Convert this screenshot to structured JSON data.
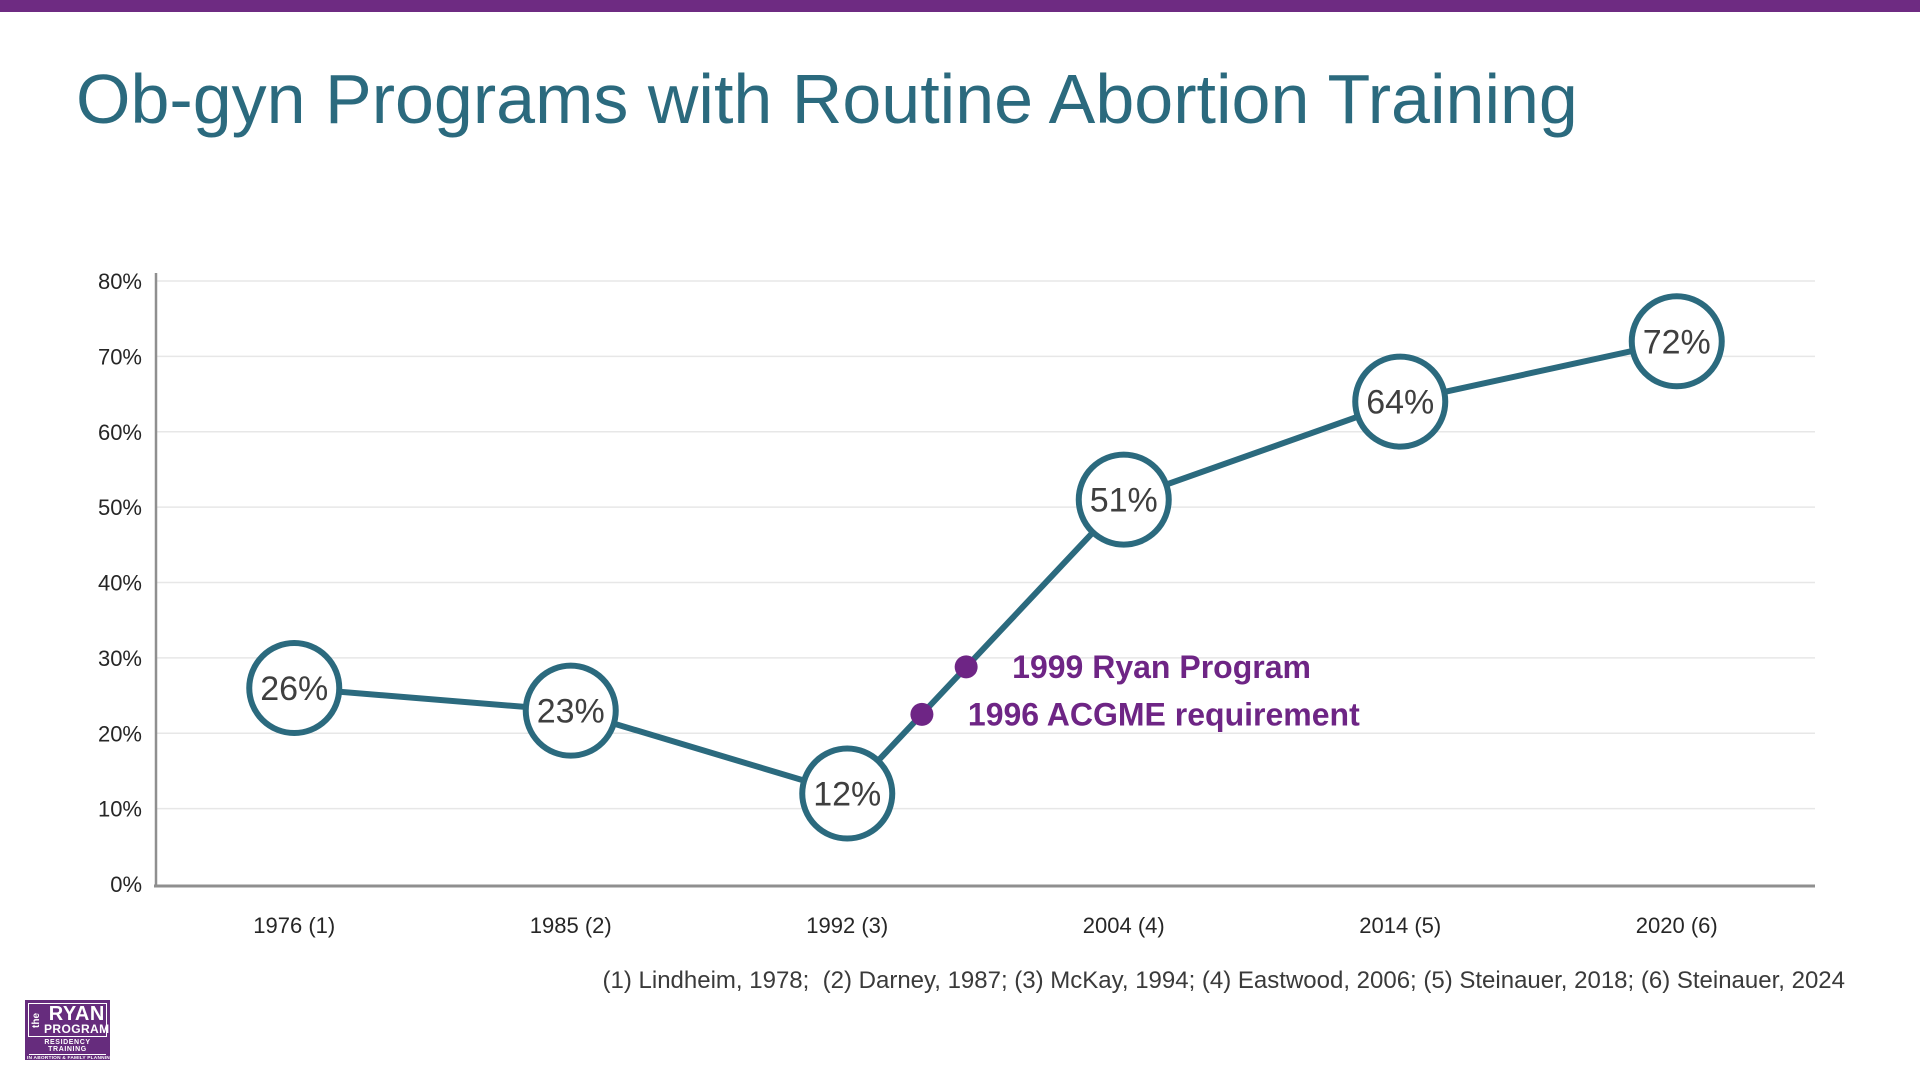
{
  "slide": {
    "title": "Ob-gyn Programs with Routine Abortion Training",
    "footnote": "(1) Lindheim, 1978;  (2) Darney, 1987; (3) McKay, 1994; (4) Eastwood, 2006; (5) Steinauer, 2018; (6) Steinauer, 2024",
    "accent_bar_color": "#6E2B82"
  },
  "colors": {
    "teal": "#2B6A7E",
    "purple": "#6E2585",
    "grid": "#E7E7E7",
    "axis": "#8F8F8F",
    "tick_label": "#262626",
    "data_label": "#3F3F3F"
  },
  "logo": {
    "the": "the",
    "ryan": "RYAN",
    "program": "PROGRAM",
    "line1": "RESIDENCY TRAINING",
    "line2": "IN ABORTION & FAMILY PLANNING",
    "bg_color": "#662C7D"
  },
  "chart_data": {
    "type": "line",
    "title": "Ob-gyn Programs with Routine Abortion Training",
    "xlabel": "",
    "ylabel": "",
    "categories": [
      "1976 (1)",
      "1985 (2)",
      "1992 (3)",
      "2004 (4)",
      "2014 (5)",
      "2020 (6)"
    ],
    "values": [
      26,
      23,
      12,
      51,
      64,
      72
    ],
    "point_labels": [
      "26%",
      "23%",
      "12%",
      "51%",
      "64%",
      "72%"
    ],
    "ylim": [
      0,
      80
    ],
    "ytick_labels": [
      "0%",
      "10%",
      "20%",
      "30%",
      "40%",
      "50%",
      "60%",
      "70%",
      "80%"
    ],
    "grid": "horizontal",
    "legend": "none",
    "annotations": [
      {
        "label": "1999 Ryan Program",
        "xi": 2.43,
        "value": 28.8
      },
      {
        "label": "1996 ACGME requirement",
        "xi": 2.27,
        "value": 22.5
      }
    ]
  }
}
